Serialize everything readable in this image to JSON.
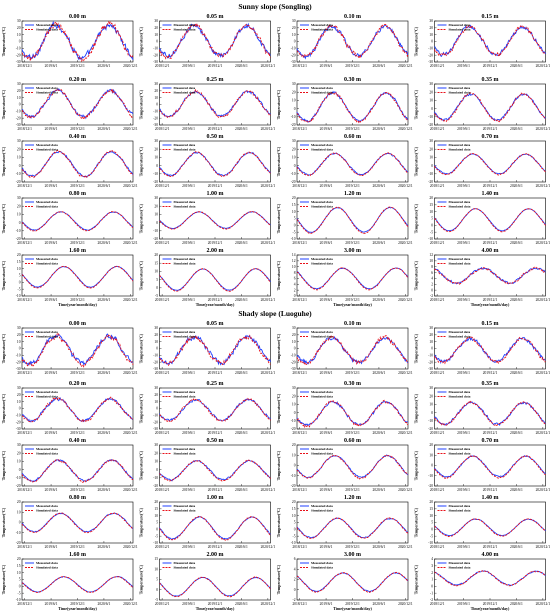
{
  "figure": {
    "sunny_title": "Sunny slope (Songling)",
    "shady_title": "Shady slope (Luoguhe)",
    "ylabel": "Temperature(°C)",
    "xlabel": "Time(year/month/day)",
    "x_ticks": [
      "2018/12/1",
      "2019/6/1",
      "2019/12/1",
      "2020/6/1",
      "2020/12/1"
    ],
    "legend": {
      "measured": "Measured data",
      "simulated": "Simulated data"
    },
    "colors": {
      "measured": "#1f3fff",
      "simulated": "#e8101a"
    }
  },
  "chart_data": [
    {
      "type": "line",
      "section": "sunny",
      "title": "0.00 m",
      "ylim": [
        -30,
        30
      ],
      "yticks": [
        -30,
        -20,
        -10,
        0,
        10,
        20,
        30
      ],
      "amplitude": 24,
      "mean": 0,
      "noise": 5.5,
      "lag": 0
    },
    {
      "type": "line",
      "section": "sunny",
      "title": "0.05 m",
      "ylim": [
        -30,
        30
      ],
      "yticks": [
        -30,
        -20,
        -10,
        0,
        10,
        20,
        30
      ],
      "amplitude": 22,
      "mean": 1,
      "noise": 4.5,
      "lag": 0.01
    },
    {
      "type": "line",
      "section": "sunny",
      "title": "0.10 m",
      "ylim": [
        -30,
        30
      ],
      "yticks": [
        -30,
        -20,
        -10,
        0,
        10,
        20,
        30
      ],
      "amplitude": 21,
      "mean": 1,
      "noise": 4,
      "lag": 0.015
    },
    {
      "type": "line",
      "section": "sunny",
      "title": "0.15 m",
      "ylim": [
        -30,
        30
      ],
      "yticks": [
        -30,
        -20,
        -10,
        0,
        10,
        20,
        30
      ],
      "amplitude": 20,
      "mean": 1,
      "noise": 3.5,
      "lag": 0.02
    },
    {
      "type": "line",
      "section": "sunny",
      "title": "0.20 m",
      "ylim": [
        -30,
        30
      ],
      "yticks": [
        -30,
        -20,
        -10,
        0,
        10,
        20,
        30
      ],
      "amplitude": 19,
      "mean": 1,
      "noise": 3,
      "lag": 0.025
    },
    {
      "type": "line",
      "section": "sunny",
      "title": "0.25 m",
      "ylim": [
        -30,
        30
      ],
      "yticks": [
        -30,
        -20,
        -10,
        0,
        10,
        20,
        30
      ],
      "amplitude": 18,
      "mean": 1,
      "noise": 2.5,
      "lag": 0.03
    },
    {
      "type": "line",
      "section": "sunny",
      "title": "0.30 m",
      "ylim": [
        -20,
        30
      ],
      "yticks": [
        -20,
        -10,
        0,
        10,
        20,
        30
      ],
      "amplitude": 17,
      "mean": 2,
      "noise": 2,
      "lag": 0.035
    },
    {
      "type": "line",
      "section": "sunny",
      "title": "0.35 m",
      "ylim": [
        -20,
        30
      ],
      "yticks": [
        -20,
        -10,
        0,
        10,
        20,
        30
      ],
      "amplitude": 16,
      "mean": 2,
      "noise": 1.8,
      "lag": 0.04
    },
    {
      "type": "line",
      "section": "sunny",
      "title": "0.40 m",
      "ylim": [
        -20,
        30
      ],
      "yticks": [
        -20,
        -10,
        0,
        10,
        20,
        30
      ],
      "amplitude": 15,
      "mean": 2,
      "noise": 1.5,
      "lag": 0.045
    },
    {
      "type": "line",
      "section": "sunny",
      "title": "0.50 m",
      "ylim": [
        -20,
        30
      ],
      "yticks": [
        -20,
        -10,
        0,
        10,
        20,
        30
      ],
      "amplitude": 14,
      "mean": 2,
      "noise": 1.2,
      "lag": 0.055
    },
    {
      "type": "line",
      "section": "sunny",
      "title": "0.60 m",
      "ylim": [
        -20,
        30
      ],
      "yticks": [
        -20,
        -10,
        0,
        10,
        20,
        30
      ],
      "amplitude": 13,
      "mean": 2,
      "noise": 1,
      "lag": 0.065
    },
    {
      "type": "line",
      "section": "sunny",
      "title": "0.70 m",
      "ylim": [
        -20,
        30
      ],
      "yticks": [
        -20,
        -10,
        0,
        10,
        20,
        30
      ],
      "amplitude": 12,
      "mean": 2,
      "noise": 0.8,
      "lag": 0.075
    },
    {
      "type": "line",
      "section": "sunny",
      "title": "0.80 m",
      "ylim": [
        -20,
        30
      ],
      "yticks": [
        -20,
        -10,
        0,
        10,
        20,
        30
      ],
      "amplitude": 11,
      "mean": 2,
      "noise": 0.6,
      "lag": 0.085
    },
    {
      "type": "line",
      "section": "sunny",
      "title": "1.00 m",
      "ylim": [
        -20,
        30
      ],
      "yticks": [
        -20,
        -10,
        0,
        10,
        20,
        30
      ],
      "amplitude": 10,
      "mean": 3,
      "noise": 0.5,
      "lag": 0.1
    },
    {
      "type": "line",
      "section": "sunny",
      "title": "1.20 m",
      "ylim": [
        -10,
        20
      ],
      "yticks": [
        -10,
        -5,
        0,
        5,
        10,
        15,
        20
      ],
      "amplitude": 9,
      "mean": 4,
      "noise": 0.4,
      "lag": 0.115
    },
    {
      "type": "line",
      "section": "sunny",
      "title": "1.40 m",
      "ylim": [
        -10,
        20
      ],
      "yticks": [
        -10,
        -5,
        0,
        5,
        10,
        15,
        20
      ],
      "amplitude": 8,
      "mean": 4,
      "noise": 0.3,
      "lag": 0.13
    },
    {
      "type": "line",
      "section": "sunny",
      "title": "1.60 m",
      "ylim": [
        -10,
        20
      ],
      "yticks": [
        -10,
        -5,
        0,
        5,
        10,
        15,
        20
      ],
      "amplitude": 7.5,
      "mean": 4,
      "noise": 0.3,
      "lag": 0.145
    },
    {
      "type": "line",
      "section": "sunny",
      "title": "2.00 m",
      "ylim": [
        -5,
        20
      ],
      "yticks": [
        -5,
        0,
        5,
        10,
        15,
        20
      ],
      "amplitude": 6.5,
      "mean": 5,
      "noise": 0.2,
      "lag": 0.17
    },
    {
      "type": "line",
      "section": "sunny",
      "title": "3.00 m",
      "ylim": [
        0,
        14
      ],
      "yticks": [
        0,
        2,
        4,
        6,
        8,
        10,
        12,
        14
      ],
      "amplitude": 3.5,
      "mean": 6,
      "noise": 0.2,
      "lag": 0.22
    },
    {
      "type": "line",
      "section": "sunny",
      "title": "4.00 m",
      "ylim": [
        -2,
        12
      ],
      "yticks": [
        -2,
        0,
        2,
        4,
        6,
        8,
        10,
        12
      ],
      "amplitude": 2.5,
      "mean": 5,
      "noise": 0.5,
      "lag": 0.27
    },
    {
      "type": "line",
      "section": "shady",
      "title": "0.00 m",
      "ylim": [
        -30,
        30
      ],
      "yticks": [
        -30,
        -20,
        -10,
        0,
        10,
        20,
        30
      ],
      "amplitude": 20,
      "mean": -2,
      "noise": 4.5,
      "lag": 0
    },
    {
      "type": "line",
      "section": "shady",
      "title": "0.05 m",
      "ylim": [
        -30,
        30
      ],
      "yticks": [
        -30,
        -20,
        -10,
        0,
        10,
        20,
        30
      ],
      "amplitude": 19,
      "mean": -2,
      "noise": 4,
      "lag": 0.01
    },
    {
      "type": "line",
      "section": "shady",
      "title": "0.10 m",
      "ylim": [
        -30,
        30
      ],
      "yticks": [
        -30,
        -20,
        -10,
        0,
        10,
        20,
        30
      ],
      "amplitude": 18,
      "mean": -2,
      "noise": 3.5,
      "lag": 0.015
    },
    {
      "type": "line",
      "section": "shady",
      "title": "0.15 m",
      "ylim": [
        -30,
        30
      ],
      "yticks": [
        -30,
        -20,
        -10,
        0,
        10,
        20,
        30
      ],
      "amplitude": 17,
      "mean": -2,
      "noise": 3,
      "lag": 0.02
    },
    {
      "type": "line",
      "section": "shady",
      "title": "0.20 m",
      "ylim": [
        -30,
        30
      ],
      "yticks": [
        -30,
        -20,
        -10,
        0,
        10,
        20,
        30
      ],
      "amplitude": 16,
      "mean": -2,
      "noise": 2.5,
      "lag": 0.025
    },
    {
      "type": "line",
      "section": "shady",
      "title": "0.25 m",
      "ylim": [
        -30,
        30
      ],
      "yticks": [
        -30,
        -20,
        -10,
        0,
        10,
        20,
        30
      ],
      "amplitude": 15,
      "mean": -2,
      "noise": 2.2,
      "lag": 0.03
    },
    {
      "type": "line",
      "section": "shady",
      "title": "0.30 m",
      "ylim": [
        -20,
        30
      ],
      "yticks": [
        -20,
        -10,
        0,
        10,
        20,
        30
      ],
      "amplitude": 14,
      "mean": -1,
      "noise": 2,
      "lag": 0.035
    },
    {
      "type": "line",
      "section": "shady",
      "title": "0.35 m",
      "ylim": [
        -20,
        30
      ],
      "yticks": [
        -20,
        -10,
        0,
        10,
        20,
        30
      ],
      "amplitude": 13,
      "mean": -1,
      "noise": 1.8,
      "lag": 0.04
    },
    {
      "type": "line",
      "section": "shady",
      "title": "0.40 m",
      "ylim": [
        -20,
        30
      ],
      "yticks": [
        -20,
        -10,
        0,
        10,
        20,
        30
      ],
      "amplitude": 12.5,
      "mean": -1,
      "noise": 1.5,
      "lag": 0.045
    },
    {
      "type": "line",
      "section": "shady",
      "title": "0.50 m",
      "ylim": [
        -20,
        30
      ],
      "yticks": [
        -20,
        -10,
        0,
        10,
        20,
        30
      ],
      "amplitude": 11.5,
      "mean": -1,
      "noise": 1.2,
      "lag": 0.055
    },
    {
      "type": "line",
      "section": "shady",
      "title": "0.60 m",
      "ylim": [
        -20,
        20
      ],
      "yticks": [
        -20,
        -10,
        0,
        10,
        20
      ],
      "amplitude": 10.5,
      "mean": -1,
      "noise": 1,
      "lag": 0.065
    },
    {
      "type": "line",
      "section": "shady",
      "title": "0.70 m",
      "ylim": [
        -20,
        20
      ],
      "yticks": [
        -20,
        -10,
        0,
        10,
        20
      ],
      "amplitude": 10,
      "mean": -1,
      "noise": 0.8,
      "lag": 0.075
    },
    {
      "type": "line",
      "section": "shady",
      "title": "0.80 m",
      "ylim": [
        -20,
        20
      ],
      "yticks": [
        -20,
        -10,
        0,
        10,
        20
      ],
      "amplitude": 9,
      "mean": 0,
      "noise": 0.6,
      "lag": 0.085
    },
    {
      "type": "line",
      "section": "shady",
      "title": "1.00 m",
      "ylim": [
        -10,
        20
      ],
      "yticks": [
        -10,
        -5,
        0,
        5,
        10,
        15,
        20
      ],
      "amplitude": 8,
      "mean": 1,
      "noise": 0.5,
      "lag": 0.1
    },
    {
      "type": "line",
      "section": "shady",
      "title": "1.20 m",
      "ylim": [
        -10,
        20
      ],
      "yticks": [
        -10,
        -5,
        0,
        5,
        10,
        15,
        20
      ],
      "amplitude": 7,
      "mean": 1,
      "noise": 0.4,
      "lag": 0.115
    },
    {
      "type": "line",
      "section": "shady",
      "title": "1.40 m",
      "ylim": [
        -10,
        20
      ],
      "yticks": [
        -10,
        -5,
        0,
        5,
        10,
        15,
        20
      ],
      "amplitude": 6,
      "mean": 1.5,
      "noise": 0.3,
      "lag": 0.13
    },
    {
      "type": "line",
      "section": "shady",
      "title": "1.60 m",
      "ylim": [
        -10,
        20
      ],
      "yticks": [
        -10,
        -5,
        0,
        5,
        10,
        15,
        20
      ],
      "amplitude": 5.5,
      "mean": 1.5,
      "noise": 0.3,
      "lag": 0.145
    },
    {
      "type": "line",
      "section": "shady",
      "title": "2.00 m",
      "ylim": [
        -5,
        15
      ],
      "yticks": [
        -5,
        0,
        5,
        10,
        15
      ],
      "amplitude": 4.5,
      "mean": 1.5,
      "noise": 0.2,
      "lag": 0.17
    },
    {
      "type": "line",
      "section": "shady",
      "title": "3.00 m",
      "ylim": [
        -2,
        6
      ],
      "yticks": [
        -2,
        0,
        2,
        4,
        6
      ],
      "amplitude": 1.8,
      "mean": 1.5,
      "noise": 0.1,
      "lag": 0.22
    },
    {
      "type": "line",
      "section": "shady",
      "title": "4.00 m",
      "ylim": [
        -2,
        4
      ],
      "yticks": [
        -2,
        -1,
        0,
        1,
        2,
        3,
        4
      ],
      "amplitude": 1.0,
      "mean": 1.2,
      "noise": 0.1,
      "lag": 0.27
    }
  ]
}
